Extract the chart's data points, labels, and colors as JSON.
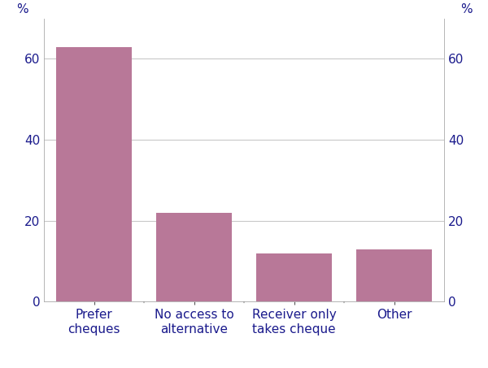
{
  "categories": [
    "Prefer\ncheques",
    "No access to\nalternative",
    "Receiver only\ntakes cheque",
    "Other"
  ],
  "values": [
    63,
    22,
    12,
    13
  ],
  "bar_color": "#b87898",
  "ylim": [
    0,
    70
  ],
  "yticks": [
    0,
    20,
    40,
    60
  ],
  "ylabel_left": "%",
  "ylabel_right": "%",
  "background_color": "#ffffff",
  "grid_color": "#c8c8c8",
  "tick_label_color": "#1a1a8c",
  "bar_width": 0.75,
  "tick_fontsize": 11,
  "label_fontsize": 11
}
